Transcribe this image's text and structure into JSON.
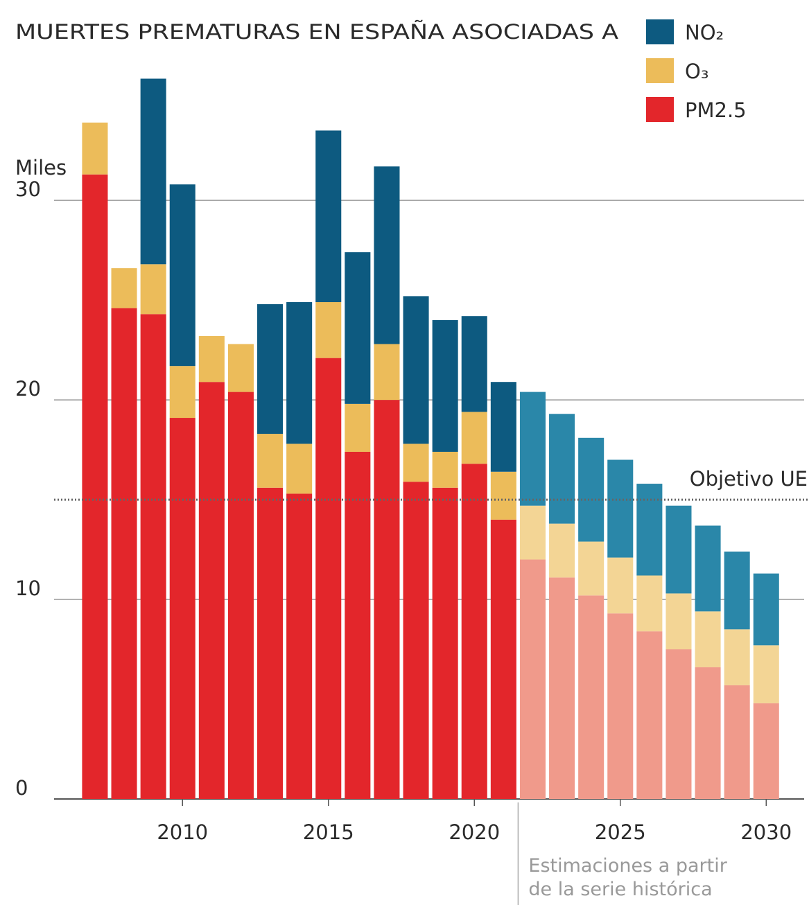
{
  "chart_data": {
    "type": "stacked_bar",
    "title": "MUERTES PREMATURAS EN ESPAÑA ASOCIADAS A",
    "y_label": "Miles",
    "x": [
      2007,
      2008,
      2009,
      2010,
      2011,
      2012,
      2013,
      2014,
      2015,
      2016,
      2017,
      2018,
      2019,
      2020,
      2021,
      2022,
      2023,
      2024,
      2025,
      2026,
      2027,
      2028,
      2029,
      2030
    ],
    "series": [
      {
        "name": "PM2.5",
        "color": "#e3262b",
        "estimate_color": "#f09a8b",
        "values": [
          31.3,
          24.6,
          24.3,
          19.1,
          20.9,
          20.4,
          15.6,
          15.3,
          22.1,
          17.4,
          20.0,
          15.9,
          15.6,
          16.8,
          14.0,
          12.0,
          11.1,
          10.2,
          9.3,
          8.4,
          7.5,
          6.6,
          5.7,
          4.8
        ]
      },
      {
        "name": "O₃",
        "color": "#ecbc5a",
        "estimate_color": "#f3d595",
        "values": [
          2.6,
          2.0,
          2.5,
          2.6,
          2.3,
          2.4,
          2.7,
          2.5,
          2.8,
          2.4,
          2.8,
          1.9,
          1.8,
          2.6,
          2.4,
          2.7,
          2.7,
          2.7,
          2.8,
          2.8,
          2.8,
          2.8,
          2.8,
          2.9
        ]
      },
      {
        "name": "NO₂",
        "color": "#0d5a80",
        "estimate_color": "#2a87a9",
        "values": [
          null,
          null,
          9.3,
          9.1,
          null,
          null,
          6.5,
          7.1,
          8.6,
          7.6,
          8.9,
          7.4,
          6.6,
          4.8,
          4.5,
          5.7,
          5.5,
          5.2,
          4.9,
          4.6,
          4.4,
          4.3,
          3.9,
          3.6
        ]
      }
    ],
    "estimates_from": 2022,
    "estimate_note": [
      "Estimaciones a partir",
      "de la serie histórica"
    ],
    "target": {
      "label": "Objetivo UE",
      "value": 15
    },
    "xlim": [
      2005.6,
      2031.3
    ],
    "xticks": [
      2010,
      2015,
      2020,
      2025,
      2030
    ],
    "ylim": [
      0,
      36.5
    ],
    "yticks": [
      0,
      10,
      20,
      30
    ],
    "grid": true,
    "legend": "top-right"
  }
}
